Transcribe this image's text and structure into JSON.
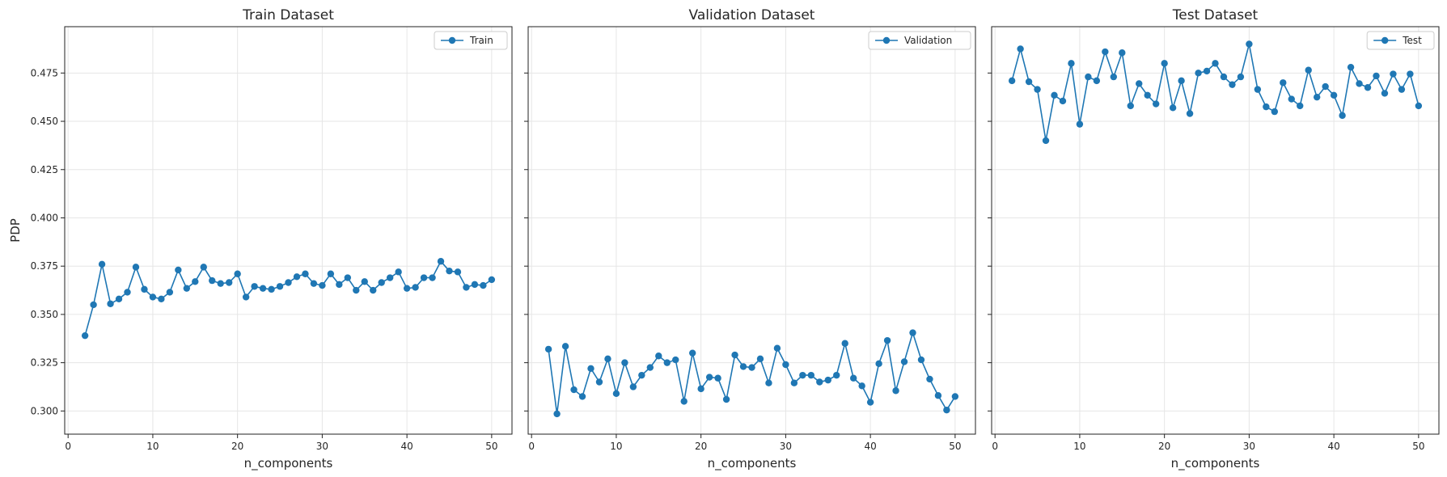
{
  "chart_data": [
    {
      "type": "line",
      "title": "Train Dataset",
      "xlabel": "n_components",
      "ylabel": "PDP",
      "xlim": [
        -0.4,
        52.4
      ],
      "ylim": [
        0.288,
        0.499
      ],
      "xticks": [
        0,
        10,
        20,
        30,
        40,
        50
      ],
      "yticks": [
        0.3,
        0.325,
        0.35,
        0.375,
        0.4,
        0.425,
        0.45,
        0.475
      ],
      "grid": true,
      "legend_position": "top-right",
      "series": [
        {
          "name": "Train",
          "color": "#1f77b4",
          "marker": "circle",
          "x": [
            2,
            3,
            4,
            5,
            6,
            7,
            8,
            9,
            10,
            11,
            12,
            13,
            14,
            15,
            16,
            17,
            18,
            19,
            20,
            21,
            22,
            23,
            24,
            25,
            26,
            27,
            28,
            29,
            30,
            31,
            32,
            33,
            34,
            35,
            36,
            37,
            38,
            39,
            40,
            41,
            42,
            43,
            44,
            45,
            46,
            47,
            48,
            49,
            50
          ],
          "y": [
            0.339,
            0.355,
            0.376,
            0.3555,
            0.358,
            0.3615,
            0.3745,
            0.363,
            0.359,
            0.358,
            0.3615,
            0.373,
            0.3635,
            0.367,
            0.3745,
            0.3675,
            0.366,
            0.3665,
            0.371,
            0.359,
            0.3645,
            0.3635,
            0.363,
            0.3645,
            0.3665,
            0.3695,
            0.371,
            0.366,
            0.365,
            0.371,
            0.3655,
            0.369,
            0.3625,
            0.367,
            0.3625,
            0.3665,
            0.369,
            0.372,
            0.3635,
            0.364,
            0.369,
            0.369,
            0.3775,
            0.3725,
            0.372,
            0.364,
            0.3655,
            0.365,
            0.368
          ]
        }
      ]
    },
    {
      "type": "line",
      "title": "Validation Dataset",
      "xlabel": "n_components",
      "ylabel": "",
      "xlim": [
        -0.4,
        52.4
      ],
      "ylim": [
        0.288,
        0.499
      ],
      "xticks": [
        0,
        10,
        20,
        30,
        40,
        50
      ],
      "yticks": [
        0.3,
        0.325,
        0.35,
        0.375,
        0.4,
        0.425,
        0.45,
        0.475
      ],
      "grid": true,
      "legend_position": "top-right",
      "series": [
        {
          "name": "Validation",
          "color": "#1f77b4",
          "marker": "circle",
          "x": [
            2,
            3,
            4,
            5,
            6,
            7,
            8,
            9,
            10,
            11,
            12,
            13,
            14,
            15,
            16,
            17,
            18,
            19,
            20,
            21,
            22,
            23,
            24,
            25,
            26,
            27,
            28,
            29,
            30,
            31,
            32,
            33,
            34,
            35,
            36,
            37,
            38,
            39,
            40,
            41,
            42,
            43,
            44,
            45,
            46,
            47,
            48,
            49,
            50
          ],
          "y": [
            0.332,
            0.2985,
            0.3335,
            0.311,
            0.3075,
            0.322,
            0.315,
            0.327,
            0.309,
            0.325,
            0.3125,
            0.3185,
            0.3225,
            0.3285,
            0.325,
            0.3265,
            0.305,
            0.33,
            0.3115,
            0.3175,
            0.317,
            0.306,
            0.329,
            0.323,
            0.3225,
            0.327,
            0.3145,
            0.3325,
            0.324,
            0.3145,
            0.3185,
            0.3185,
            0.315,
            0.316,
            0.3185,
            0.335,
            0.317,
            0.313,
            0.3045,
            0.3245,
            0.3365,
            0.3105,
            0.3255,
            0.3405,
            0.3265,
            0.3165,
            0.308,
            0.3005,
            0.3075
          ]
        }
      ]
    },
    {
      "type": "line",
      "title": "Test Dataset",
      "xlabel": "n_components",
      "ylabel": "",
      "xlim": [
        -0.4,
        52.4
      ],
      "ylim": [
        0.288,
        0.499
      ],
      "xticks": [
        0,
        10,
        20,
        30,
        40,
        50
      ],
      "yticks": [
        0.3,
        0.325,
        0.35,
        0.375,
        0.4,
        0.425,
        0.45,
        0.475
      ],
      "grid": true,
      "legend_position": "top-right",
      "series": [
        {
          "name": "Test",
          "color": "#1f77b4",
          "marker": "circle",
          "x": [
            2,
            3,
            4,
            5,
            6,
            7,
            8,
            9,
            10,
            11,
            12,
            13,
            14,
            15,
            16,
            17,
            18,
            19,
            20,
            21,
            22,
            23,
            24,
            25,
            26,
            27,
            28,
            29,
            30,
            31,
            32,
            33,
            34,
            35,
            36,
            37,
            38,
            39,
            40,
            41,
            42,
            43,
            44,
            45,
            46,
            47,
            48,
            49,
            50
          ],
          "y": [
            0.471,
            0.4875,
            0.4705,
            0.4665,
            0.44,
            0.4635,
            0.4605,
            0.48,
            0.4485,
            0.473,
            0.471,
            0.486,
            0.473,
            0.4855,
            0.458,
            0.4695,
            0.4635,
            0.459,
            0.48,
            0.457,
            0.471,
            0.454,
            0.475,
            0.476,
            0.48,
            0.473,
            0.469,
            0.473,
            0.49,
            0.4665,
            0.4575,
            0.455,
            0.47,
            0.4615,
            0.458,
            0.4765,
            0.4625,
            0.468,
            0.4635,
            0.453,
            0.478,
            0.4695,
            0.4675,
            0.4735,
            0.4645,
            0.4745,
            0.4665,
            0.4745,
            0.458
          ]
        }
      ]
    }
  ]
}
